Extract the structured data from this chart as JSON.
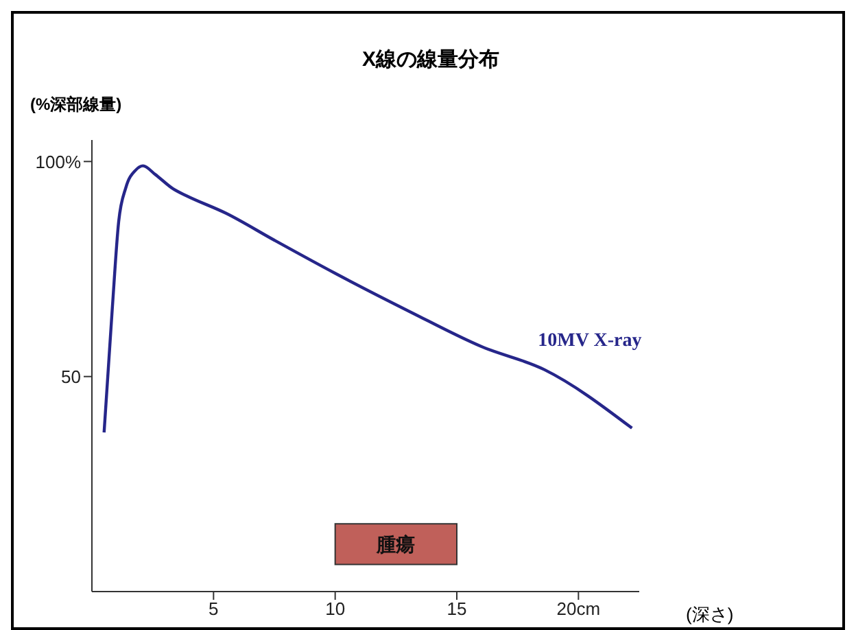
{
  "chart_data": {
    "type": "line",
    "title": "X線の線量分布",
    "ylabel": "(%深部線量)",
    "xlabel": "(深さ)",
    "xlim": [
      0,
      22.5
    ],
    "xticks": [
      5,
      10,
      {
        "value": 15,
        "label": "15"
      },
      {
        "value": 20,
        "label": "20cm"
      }
    ],
    "ylim": [
      0,
      105
    ],
    "yticks": [
      50,
      {
        "value": 100,
        "label": "100%"
      }
    ],
    "series": [
      {
        "name": "10MV X-ray",
        "color": "#26268a",
        "x": [
          0.5,
          0.84,
          1.1,
          1.4,
          1.8,
          2.1,
          2.6,
          3.35,
          3.9,
          5.5,
          7.5,
          10,
          13.1,
          16,
          18.6,
          22.2
        ],
        "values": [
          37,
          66,
          86,
          94,
          98,
          99,
          97,
          93.6,
          92,
          88,
          81.7,
          74,
          65,
          57,
          51.6,
          38
        ]
      }
    ],
    "bands": [
      {
        "axis": "x",
        "from": 10,
        "to": 15,
        "label": "腫瘍",
        "color": "#c0605a"
      }
    ],
    "grid": false,
    "legend": false,
    "marker": "none",
    "line_style": "solid"
  }
}
